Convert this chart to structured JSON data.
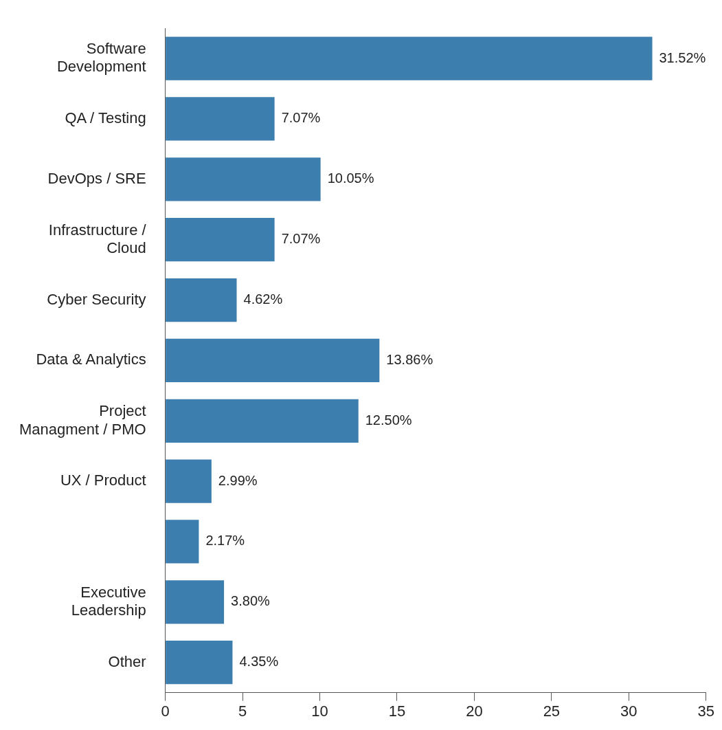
{
  "chart_data": {
    "type": "bar",
    "orientation": "horizontal",
    "categories": [
      "Software Development",
      "QA / Testing",
      "DevOps / SRE",
      "Infrastructure / Cloud",
      "Cyber Security",
      "Data & Analytics",
      "Project Managment / PMO",
      "UX / Product",
      null,
      "Executive Leadership",
      "Other"
    ],
    "values": [
      31.52,
      7.07,
      10.05,
      7.07,
      4.62,
      13.86,
      12.5,
      2.99,
      2.17,
      3.8,
      4.35
    ],
    "value_labels": [
      "31.52%",
      "7.07%",
      "10.05%",
      "7.07%",
      "4.62%",
      "13.86%",
      "12.50%",
      "2.99%",
      "2.17%",
      "3.80%",
      "4.35%"
    ],
    "color": "#3c7eae",
    "xlim": [
      0,
      35
    ],
    "xticks": [
      0,
      5,
      10,
      15,
      20,
      25,
      30,
      35
    ],
    "grid": false,
    "legend": false
  }
}
